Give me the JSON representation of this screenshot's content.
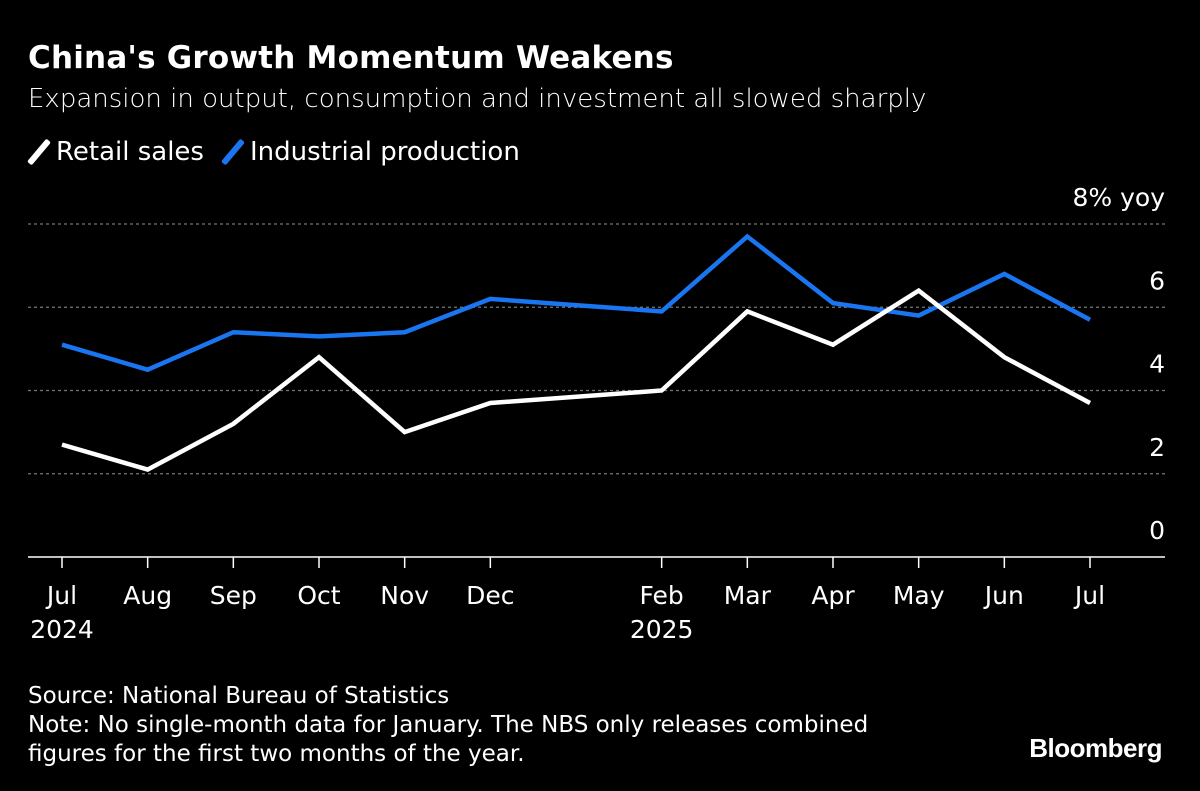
{
  "chart_data": {
    "type": "line",
    "title": "China's Growth Momentum Weakens",
    "subtitle": "Expansion in output, consumption and investment all slowed sharply",
    "unit_label": "8% yoy",
    "x": [
      "2024-07",
      "2024-08",
      "2024-09",
      "2024-10",
      "2024-11",
      "2024-12",
      "2025-02",
      "2025-03",
      "2025-04",
      "2025-05",
      "2025-06",
      "2025-07"
    ],
    "x_tick_labels": [
      {
        "month": "2024-07",
        "label": "Jul",
        "year": "2024"
      },
      {
        "month": "2024-08",
        "label": "Aug"
      },
      {
        "month": "2024-09",
        "label": "Sep"
      },
      {
        "month": "2024-10",
        "label": "Oct"
      },
      {
        "month": "2024-11",
        "label": "Nov"
      },
      {
        "month": "2024-12",
        "label": "Dec"
      },
      {
        "month": "2025-02",
        "label": "Feb",
        "year": "2025"
      },
      {
        "month": "2025-03",
        "label": "Mar"
      },
      {
        "month": "2025-04",
        "label": "Apr"
      },
      {
        "month": "2025-05",
        "label": "May"
      },
      {
        "month": "2025-06",
        "label": "Jun"
      },
      {
        "month": "2025-07",
        "label": "Jul"
      }
    ],
    "xlim": [
      "2024-07",
      "2025-07"
    ],
    "y_ticks": [
      0,
      2,
      4,
      6,
      8
    ],
    "y_tick_labels": [
      "0",
      "2",
      "4",
      "6",
      "8% yoy"
    ],
    "ylim": [
      0,
      8
    ],
    "grid": true,
    "legend_position": "top-left",
    "series": [
      {
        "name": "Retail sales",
        "color": "#ffffff",
        "values": [
          2.7,
          2.1,
          3.2,
          4.8,
          3.0,
          3.7,
          4.0,
          5.9,
          5.1,
          6.4,
          4.8,
          3.7
        ]
      },
      {
        "name": "Industrial production",
        "color": "#1a75f0",
        "values": [
          5.1,
          4.5,
          5.4,
          5.3,
          5.4,
          6.2,
          5.9,
          7.7,
          6.1,
          5.8,
          6.8,
          5.7
        ]
      }
    ]
  },
  "footer": {
    "source": "Source: National Bureau of Statistics",
    "note_line1": "Note: No single-month data for January. The NBS only releases combined",
    "note_line2": "figures for the first two months of the year."
  },
  "brand": "Bloomberg"
}
